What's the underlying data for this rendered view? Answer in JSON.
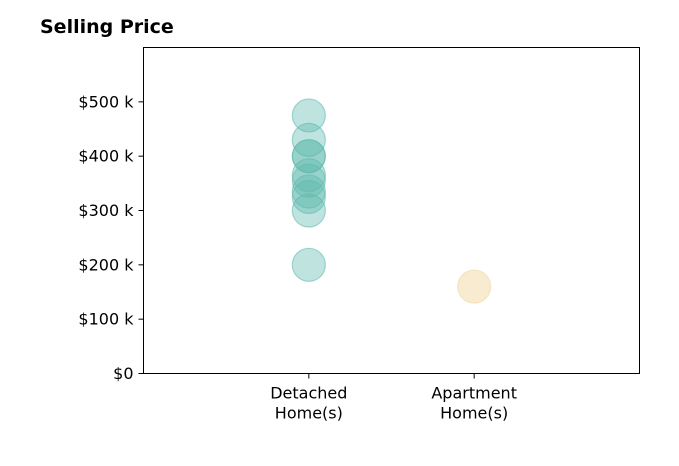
{
  "chart_data": {
    "type": "scatter",
    "title": "Selling Price",
    "xlabel": "",
    "ylabel": "",
    "categories": [
      "Detached\nHome(s)",
      "Apartment\nHome(s)"
    ],
    "category_positions": [
      1,
      2
    ],
    "xlim": [
      0,
      3
    ],
    "ylim": [
      0,
      600000
    ],
    "yticks": [
      0,
      100000,
      200000,
      300000,
      400000,
      500000
    ],
    "ytick_labels": [
      "$0",
      "$100 k",
      "$200 k",
      "$300 k",
      "$400 k",
      "$500 k"
    ],
    "grid": false,
    "legend": "none",
    "series": [
      {
        "category": "Detached\nHome(s)",
        "color": "#5fb8ad",
        "opacity": 0.4,
        "x": [
          1,
          1,
          1,
          1,
          1,
          1,
          1,
          1,
          1,
          1
        ],
        "y": [
          475000,
          430000,
          400000,
          400000,
          365000,
          355000,
          335000,
          325000,
          300000,
          200000
        ]
      },
      {
        "category": "Apartment\nHome(s)",
        "color": "#f3deb0",
        "opacity": 0.6,
        "x": [
          2
        ],
        "y": [
          160000
        ]
      }
    ]
  }
}
